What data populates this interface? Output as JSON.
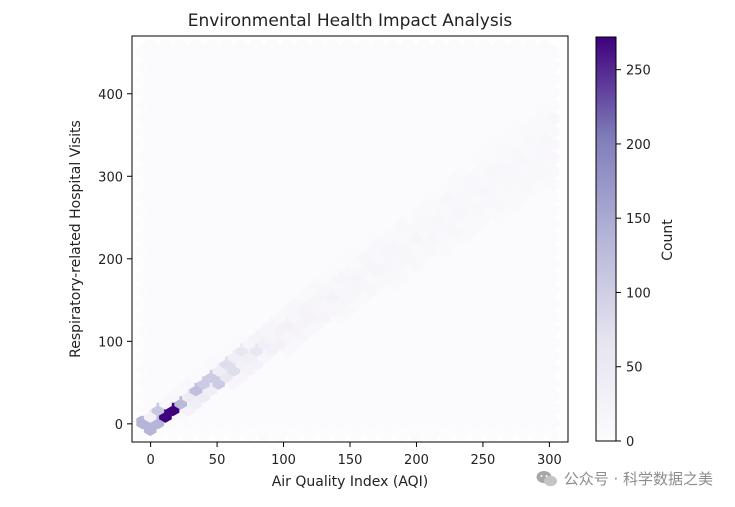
{
  "chart_data": {
    "type": "hexbin",
    "title": "Environmental Health Impact Analysis",
    "xlabel": "Air Quality Index (AQI)",
    "ylabel": "Respiratory-related Hospital Visits",
    "xlim": [
      -14,
      314
    ],
    "ylim": [
      -22,
      470
    ],
    "xticks": [
      0,
      50,
      100,
      150,
      200,
      250,
      300
    ],
    "yticks": [
      0,
      100,
      200,
      300,
      400
    ],
    "colorbar": {
      "label": "Count",
      "range": [
        0,
        272
      ],
      "ticks": [
        0,
        50,
        100,
        150,
        200,
        250
      ],
      "colormap": "Purples"
    },
    "grid": false,
    "gridsize": 30,
    "hex_counts_description": "Each hexagon's colour encodes the count of points; density concentrated along y ≈ 1.0–1.3 × x, widening with AQI; peak count ≈ 272 near AQI 15, visits 15.",
    "peak_bins": [
      {
        "x": 15,
        "y": 15,
        "count": 272
      },
      {
        "x": 0,
        "y": 0,
        "count": 110
      },
      {
        "x": 8,
        "y": 15,
        "count": 90
      },
      {
        "x": 22,
        "y": 25,
        "count": 105
      },
      {
        "x": 38,
        "y": 42,
        "count": 100
      },
      {
        "x": 45,
        "y": 50,
        "count": 85
      },
      {
        "x": 60,
        "y": 70,
        "count": 60
      },
      {
        "x": 75,
        "y": 90,
        "count": 45
      }
    ]
  },
  "watermark": {
    "text": "公众号 · 科学数据之美"
  }
}
